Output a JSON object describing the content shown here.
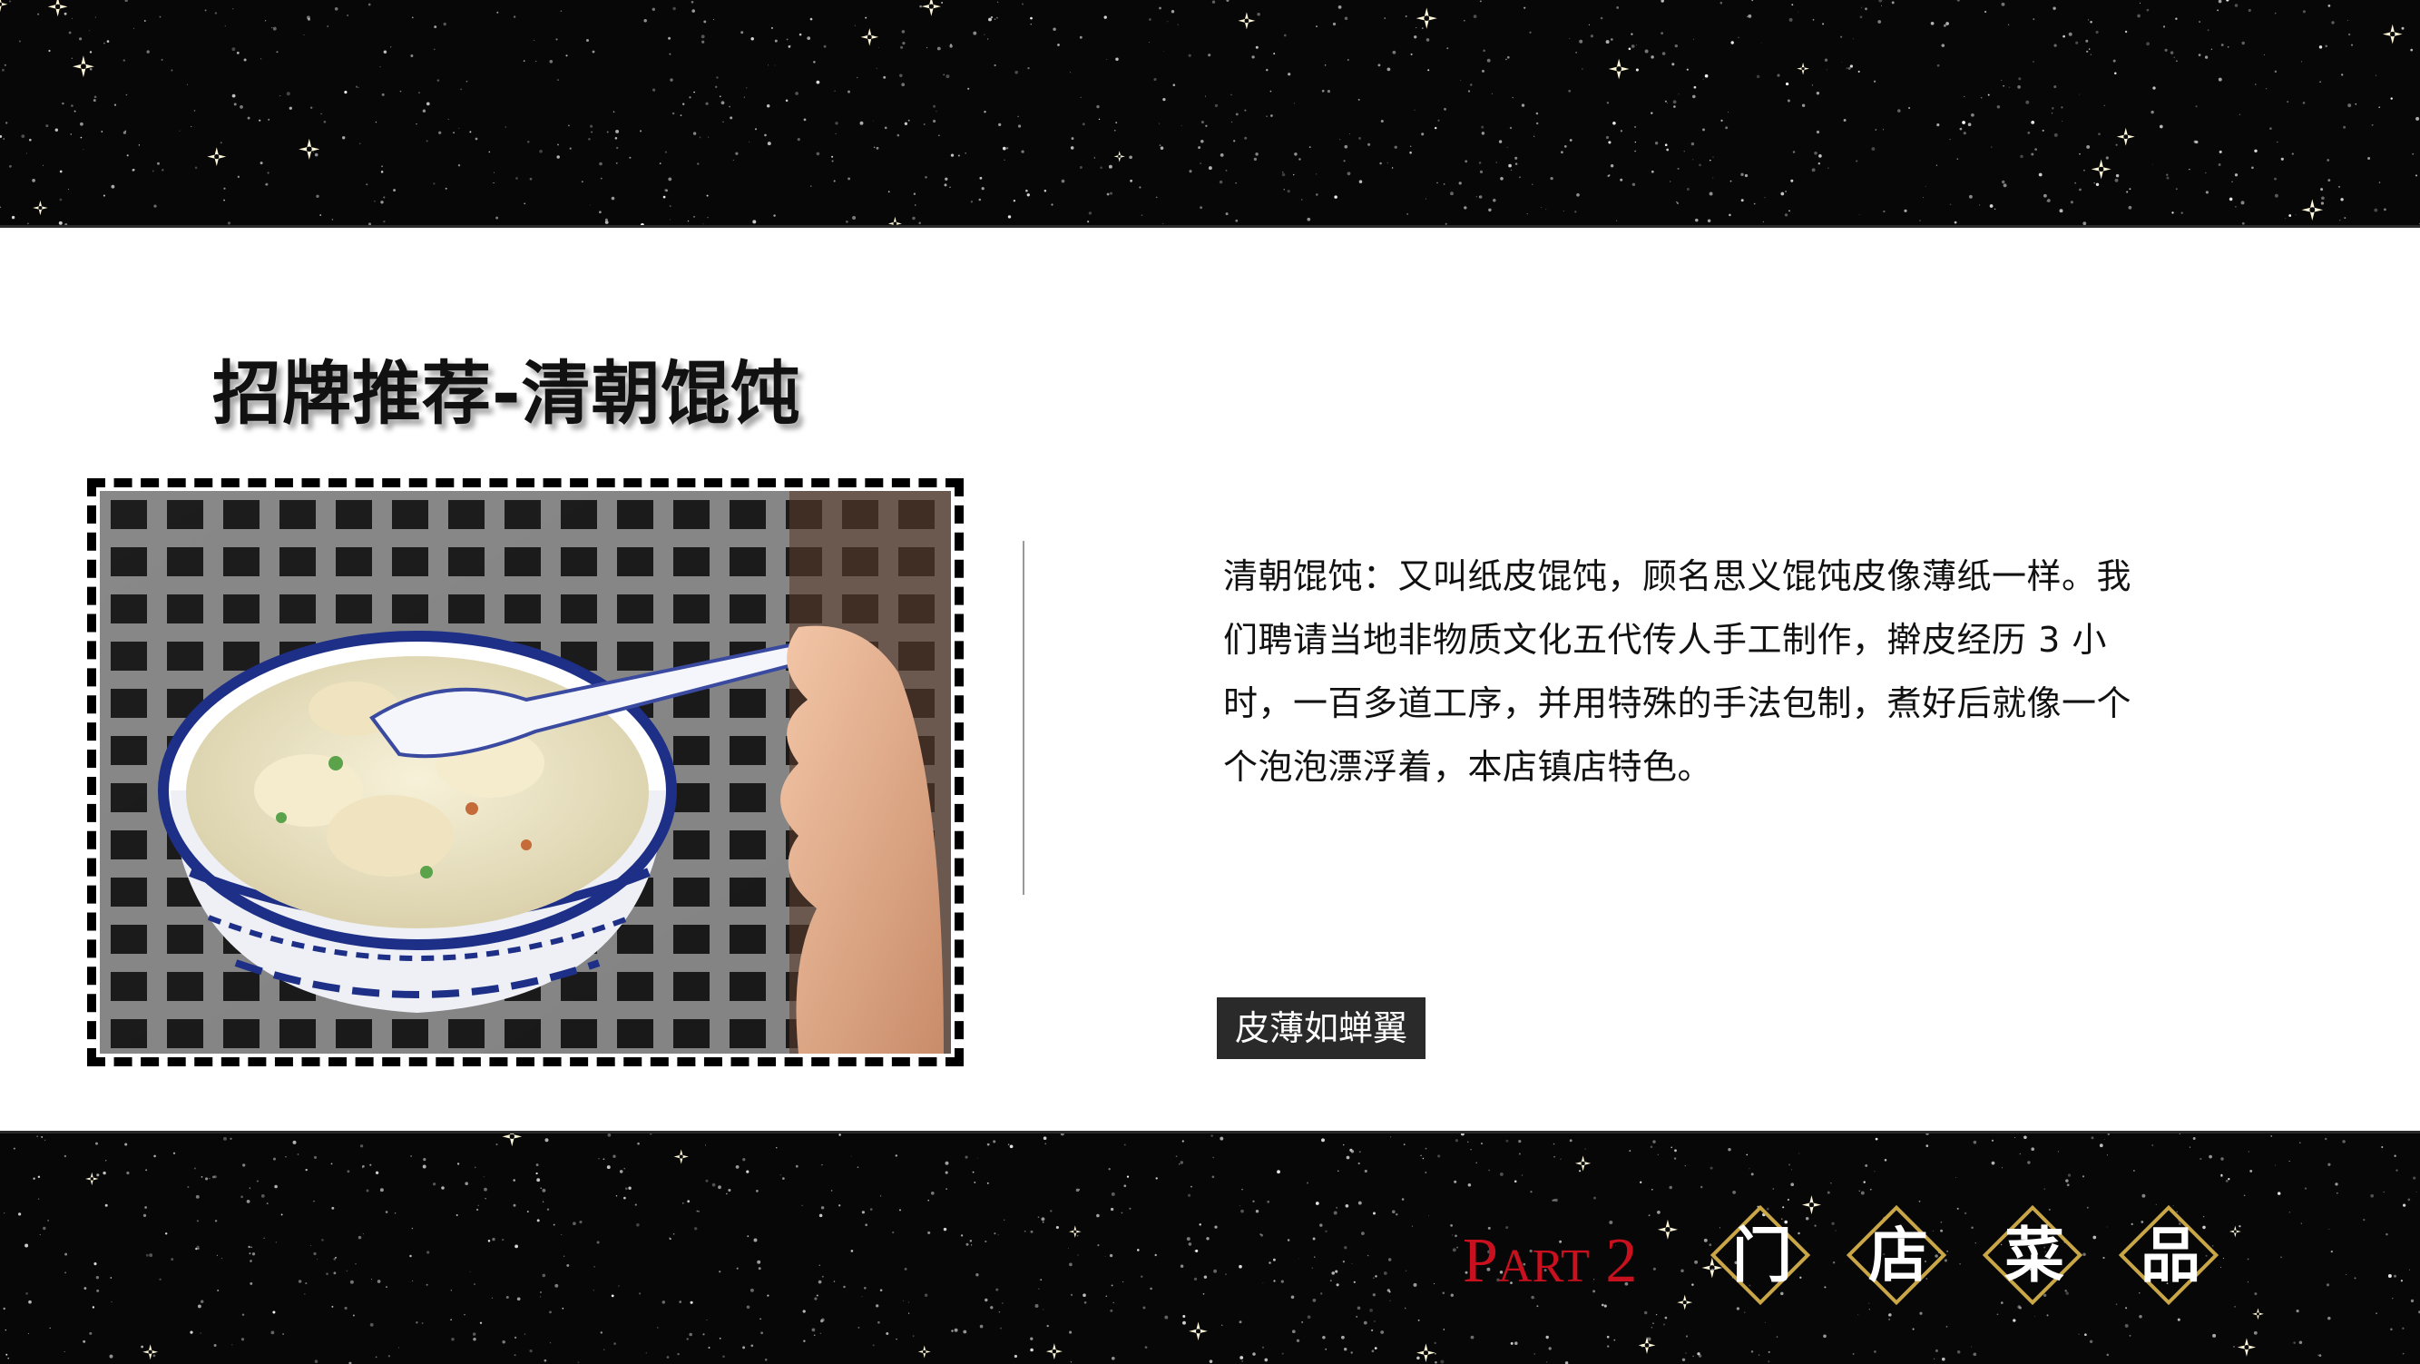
{
  "title": "招牌推荐-清朝馄饨",
  "description": "清朝馄饨：又叫纸皮馄饨，顾名思义馄饨皮像薄纸一样。我们聘请当地非物质文化五代传人手工制作，擀皮经历 3 小时，一百多道工序，并用特殊的手法包制，煮好后就像一个个泡泡漂浮着，本店镇店特色。",
  "tag": "皮薄如蝉翼",
  "part": {
    "first": "P",
    "rest": "ART",
    "number": " 2"
  },
  "section_chars": [
    "门",
    "店",
    "菜",
    "品"
  ],
  "colors": {
    "accent_red": "#c8101e",
    "gold": "#c9a646",
    "dark": "#070707"
  }
}
